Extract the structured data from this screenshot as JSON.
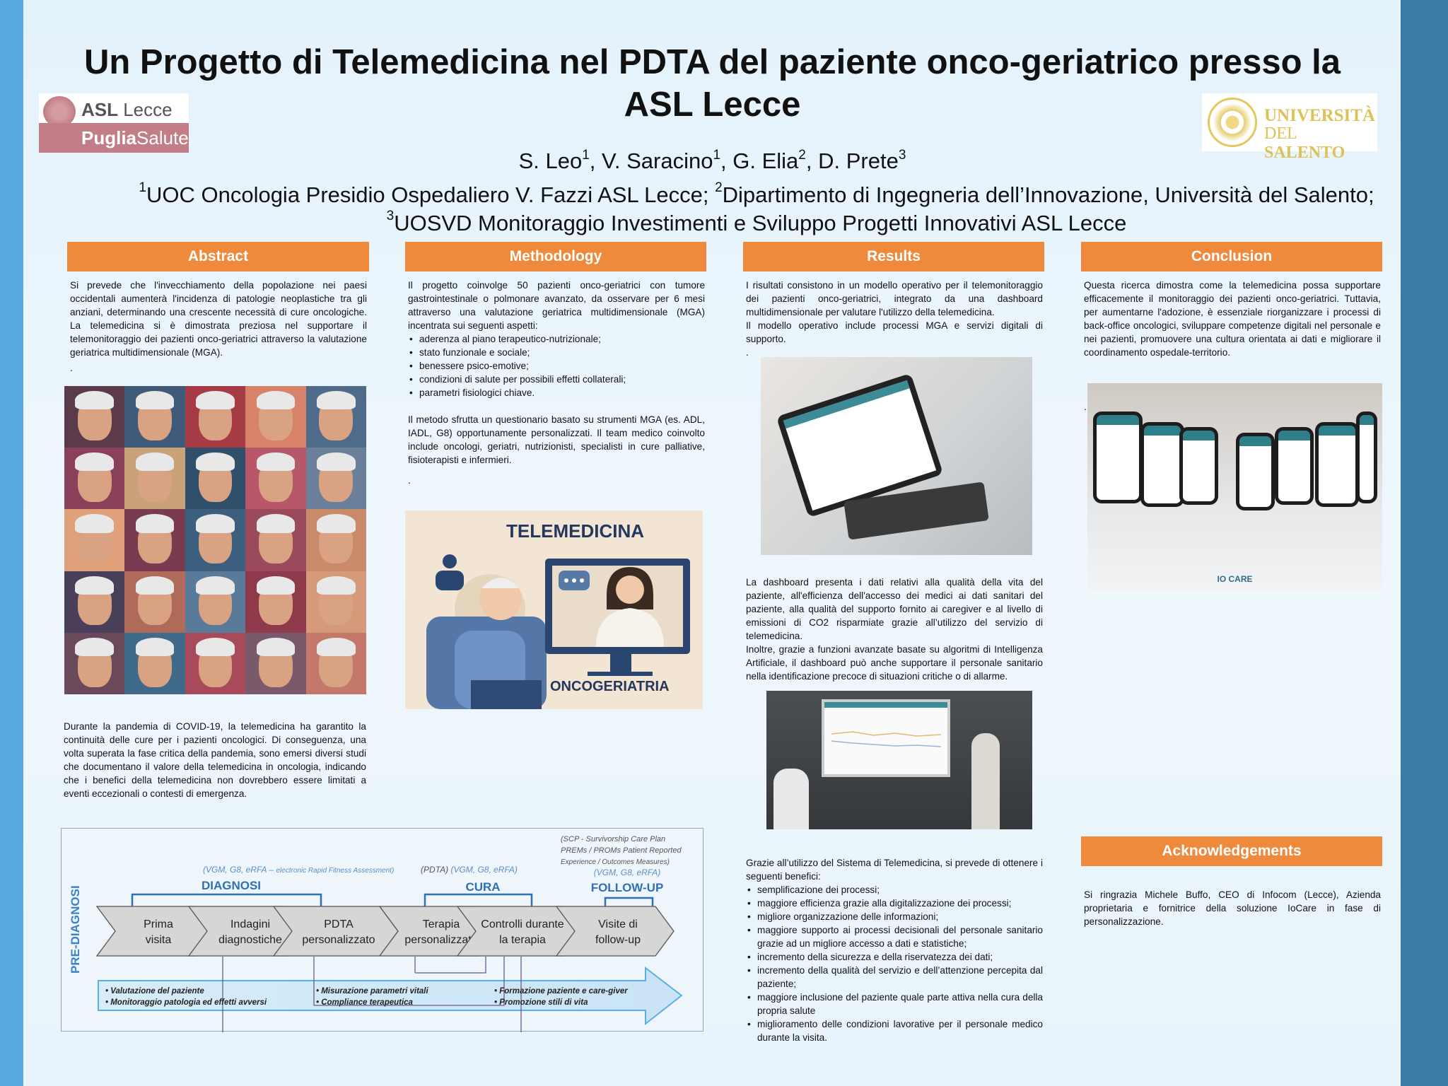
{
  "title": "Un Progetto di Telemedicina nel PDTA del paziente onco-geriatrico presso la ASL Lecce",
  "authors": [
    {
      "name": "S. Leo",
      "aff": "1"
    },
    {
      "name": "V. Saracino",
      "aff": "1"
    },
    {
      "name": "G. Elia",
      "aff": "2"
    },
    {
      "name": "D. Prete",
      "aff": "3"
    }
  ],
  "affiliations": [
    {
      "num": "1",
      "text": "UOC Oncologia Presidio Ospedaliero V. Fazzi ASL Lecce; "
    },
    {
      "num": "2",
      "text": "Dipartimento di Ingegneria dell’Innovazione, Università del Salento; "
    },
    {
      "num": "3",
      "text": "UOSVD Monitoraggio Investimenti e Sviluppo Progetti Innovativi ASL Lecce"
    }
  ],
  "logos": {
    "asl": {
      "line1_bold": "ASL",
      "line1": " Lecce",
      "line2_bold": "Puglia",
      "line2": "Salute"
    },
    "unisalento": {
      "line1": "UNIVERSITÀ",
      "line2_a": "DEL ",
      "line2_b": "SALENTO"
    }
  },
  "colors": {
    "section_header": "#ef8a3c",
    "diagram_blue": "#2e6fb5",
    "left_strip": "#5aa9e0",
    "right_strip": "#3c7aa6"
  },
  "abstract": {
    "heading": "Abstract",
    "p1": "Si prevede che l'invecchiamento della popolazione nei paesi occidentali aumenterà l'incidenza di patologie neoplastiche tra gli anziani, determinando una crescente necessità di cure oncologiche. La telemedicina si è dimostrata preziosa nel supportare il telemonitoraggio dei pazienti onco-geriatrici attraverso la valutazione geriatrica multidimensionale (MGA).",
    "dot": ".",
    "p2": "Durante la pandemia di COVID-19, la telemedicina ha garantito la continuità delle cure per i pazienti  oncologici. Di conseguenza, una volta superata la fase critica della pandemia, sono emersi diversi studi che documentano il valore della telemedicina  in oncologia, indicando che i benefici della telemedicina non dovrebbero essere limitati a eventi eccezionali o contesti di emergenza."
  },
  "methodology": {
    "heading": "Methodology",
    "p1": "Il progetto coinvolge 50 pazienti onco-geriatrici con tumore gastrointestinale o polmonare avanzato, da osservare per 6 mesi attraverso una valutazione geriatrica multidimensionale (MGA) incentrata sui seguenti aspetti:",
    "bullets": [
      "aderenza al piano terapeutico-nutrizionale;",
      "stato funzionale e sociale;",
      "benessere psico-emotive;",
      "condizioni di salute per possibili effetti collaterali;",
      "parametri fisiologici chiave."
    ],
    "p2": "Il metodo sfrutta un questionario basato su strumenti MGA (es. ADL, IADL, G8) opportunamente personalizzati. Il team medico coinvolto include oncologi, geriatri, nutrizionisti, specialisti in cure palliative, fisioterapisti e infermieri.",
    "dot": ".",
    "image": {
      "title": "TELEMEDICINA",
      "subtitle": "ONCOGERIATRIA"
    }
  },
  "results": {
    "heading": "Results",
    "p1": "I risultati consistono in un modello operativo per il telemonitoraggio dei pazienti onco-geriatrici, integrato da una dashboard multidimensionale per valutare l'utilizzo della telemedicina.",
    "p2": "Il modello operativo include processi MGA e servizi digitali di supporto.",
    "dot": ".",
    "p3": "La dashboard presenta i dati relativi alla qualità della vita del paziente, all'efficienza dell'accesso dei medici ai dati sanitari del paziente, alla qualità del supporto fornito ai caregiver e al livello di emissioni di CO2 risparmiate grazie all’utilizzo del servizio di telemedicina.",
    "p4": "Inoltre, grazie a funzioni avanzate basate su algoritmi di Intelligenza Artificiale, il dashboard può anche supportare il personale sanitario nella identificazione precoce di situazioni critiche o di allarme.",
    "p5": "Grazie all’utilizzo del Sistema di Telemedicina, si prevede di ottenere i seguenti  benefici:",
    "benefits": [
      "semplificazione dei processi;",
      "maggiore efficienza grazie alla digitalizzazione dei processi;",
      "migliore organizzazione delle informazioni;",
      "maggiore supporto ai processi decisionali del personale sanitario grazie ad un migliore accesso a dati e statistiche;",
      "incremento della sicurezza e della riservatezza dei dati;",
      "incremento della qualità del servizio e dell’attenzione percepita dal paziente;",
      "maggiore inclusione del paziente quale parte attiva nella cura della propria salute",
      "miglioramento delle condizioni lavorative per il personale medico durante la visita."
    ]
  },
  "conclusion": {
    "heading": "Conclusion",
    "p1": "Questa ricerca dimostra come la telemedicina possa supportare efficacemente il monitoraggio dei pazienti onco-geriatrici. Tuttavia, per aumentarne l'adozione, è essenziale riorganizzare i processi di back-office oncologici, sviluppare competenze digitali nel personale e nei pazienti, promuovere una cultura orientata ai dati e migliorare il coordinamento ospedale-territorio.",
    "dot": ".",
    "image_logo": "IO CARE"
  },
  "acknowledgements": {
    "heading": "Acknowledgements",
    "p1": "Si ringrazia Michele Buffo, CEO di Infocom (Lecce), Azienda proprietaria e fornitrice della soluzione IoCare in fase di personalizzazione."
  },
  "diagram": {
    "side_label": "PRE-DIAGNOSI",
    "phases": [
      {
        "label": "DIAGNOSI",
        "note": "(VGM, G8, eRFA – ",
        "note_small": "electronic Rapid Fitness Assessment)"
      },
      {
        "label": "CURA",
        "note_gray": "(PDTA) ",
        "note": "(VGM, G8, eRFA)"
      },
      {
        "label": "FOLLOW-UP",
        "note": "(VGM, G8, eRFA)"
      }
    ],
    "followup_extra": [
      "(SCP - Survivorship Care Plan",
      "PREMs / PROMs Patient Reported",
      "Experience / Outcomes Measures)"
    ],
    "steps": [
      [
        "Prima",
        "visita"
      ],
      [
        "Indagini",
        "diagnostiche"
      ],
      [
        "PDTA",
        "personalizzato"
      ],
      [
        "Terapia",
        "personalizzata"
      ],
      [
        "Controlli durante",
        "la terapia"
      ],
      [
        "Visite di",
        "follow-up"
      ]
    ],
    "activities": [
      [
        "• Valutazione del paziente",
        "• Monitoraggio patologia ed effetti avversi"
      ],
      [
        "• Misurazione parametri vitali",
        "• Compliance terapeutica"
      ],
      [
        "• Formazione paziente e care-giver",
        "• Promozione stili di vita"
      ]
    ]
  }
}
